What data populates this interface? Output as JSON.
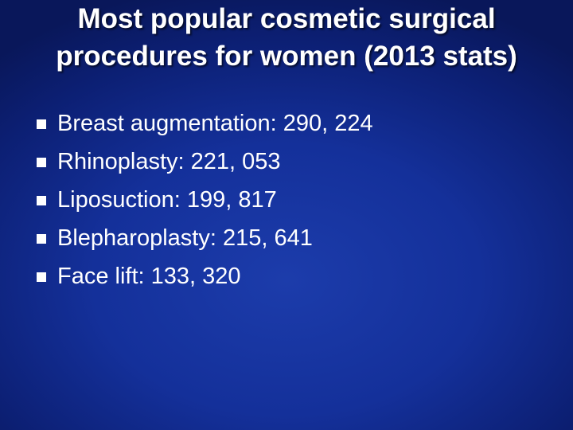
{
  "slide": {
    "title": "Most popular cosmetic surgical procedures for women (2013 stats)",
    "bullets": [
      "Breast augmentation: 290, 224",
      "Rhinoplasty: 221, 053",
      "Liposuction: 199, 817",
      "Blepharoplasty: 215, 641",
      "Face lift: 133, 320"
    ]
  }
}
